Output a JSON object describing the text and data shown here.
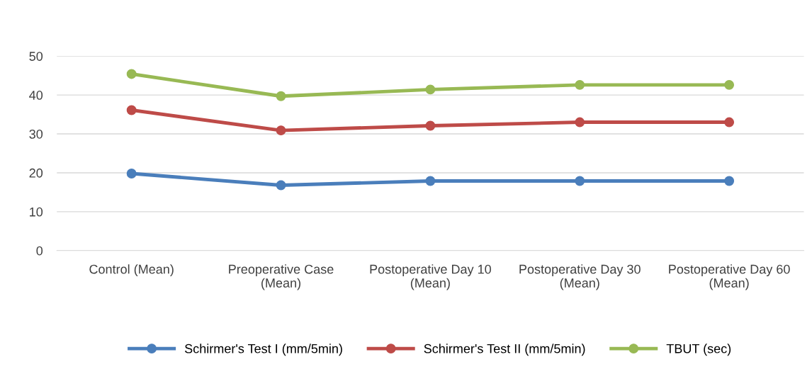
{
  "chart_data": {
    "type": "line",
    "categories": [
      "Control (Mean)",
      "Preoperative Case\n(Mean)",
      "Postoperative Day 10\n(Mean)",
      "Postoperative Day 30\n(Mean)",
      "Postoperative Day 60\n(Mean)"
    ],
    "series": [
      {
        "name": "Schirmer's Test I (mm/5min)",
        "color": "#4a7ebb",
        "values": [
          19.8,
          16.8,
          17.9,
          17.9,
          17.9
        ]
      },
      {
        "name": "Schirmer's Test II (mm/5min)",
        "color": "#be4b48",
        "values": [
          36.1,
          30.9,
          32.1,
          33.0,
          33.0
        ]
      },
      {
        "name": "TBUT (sec)",
        "color": "#98b954",
        "values": [
          45.4,
          39.7,
          41.4,
          42.6,
          42.6
        ]
      }
    ],
    "ylim": [
      0,
      50
    ],
    "yticks": [
      0,
      10,
      20,
      30,
      40,
      50
    ],
    "grid": "y",
    "legend": "bottom",
    "marker": "circle",
    "line_style": "solid"
  }
}
